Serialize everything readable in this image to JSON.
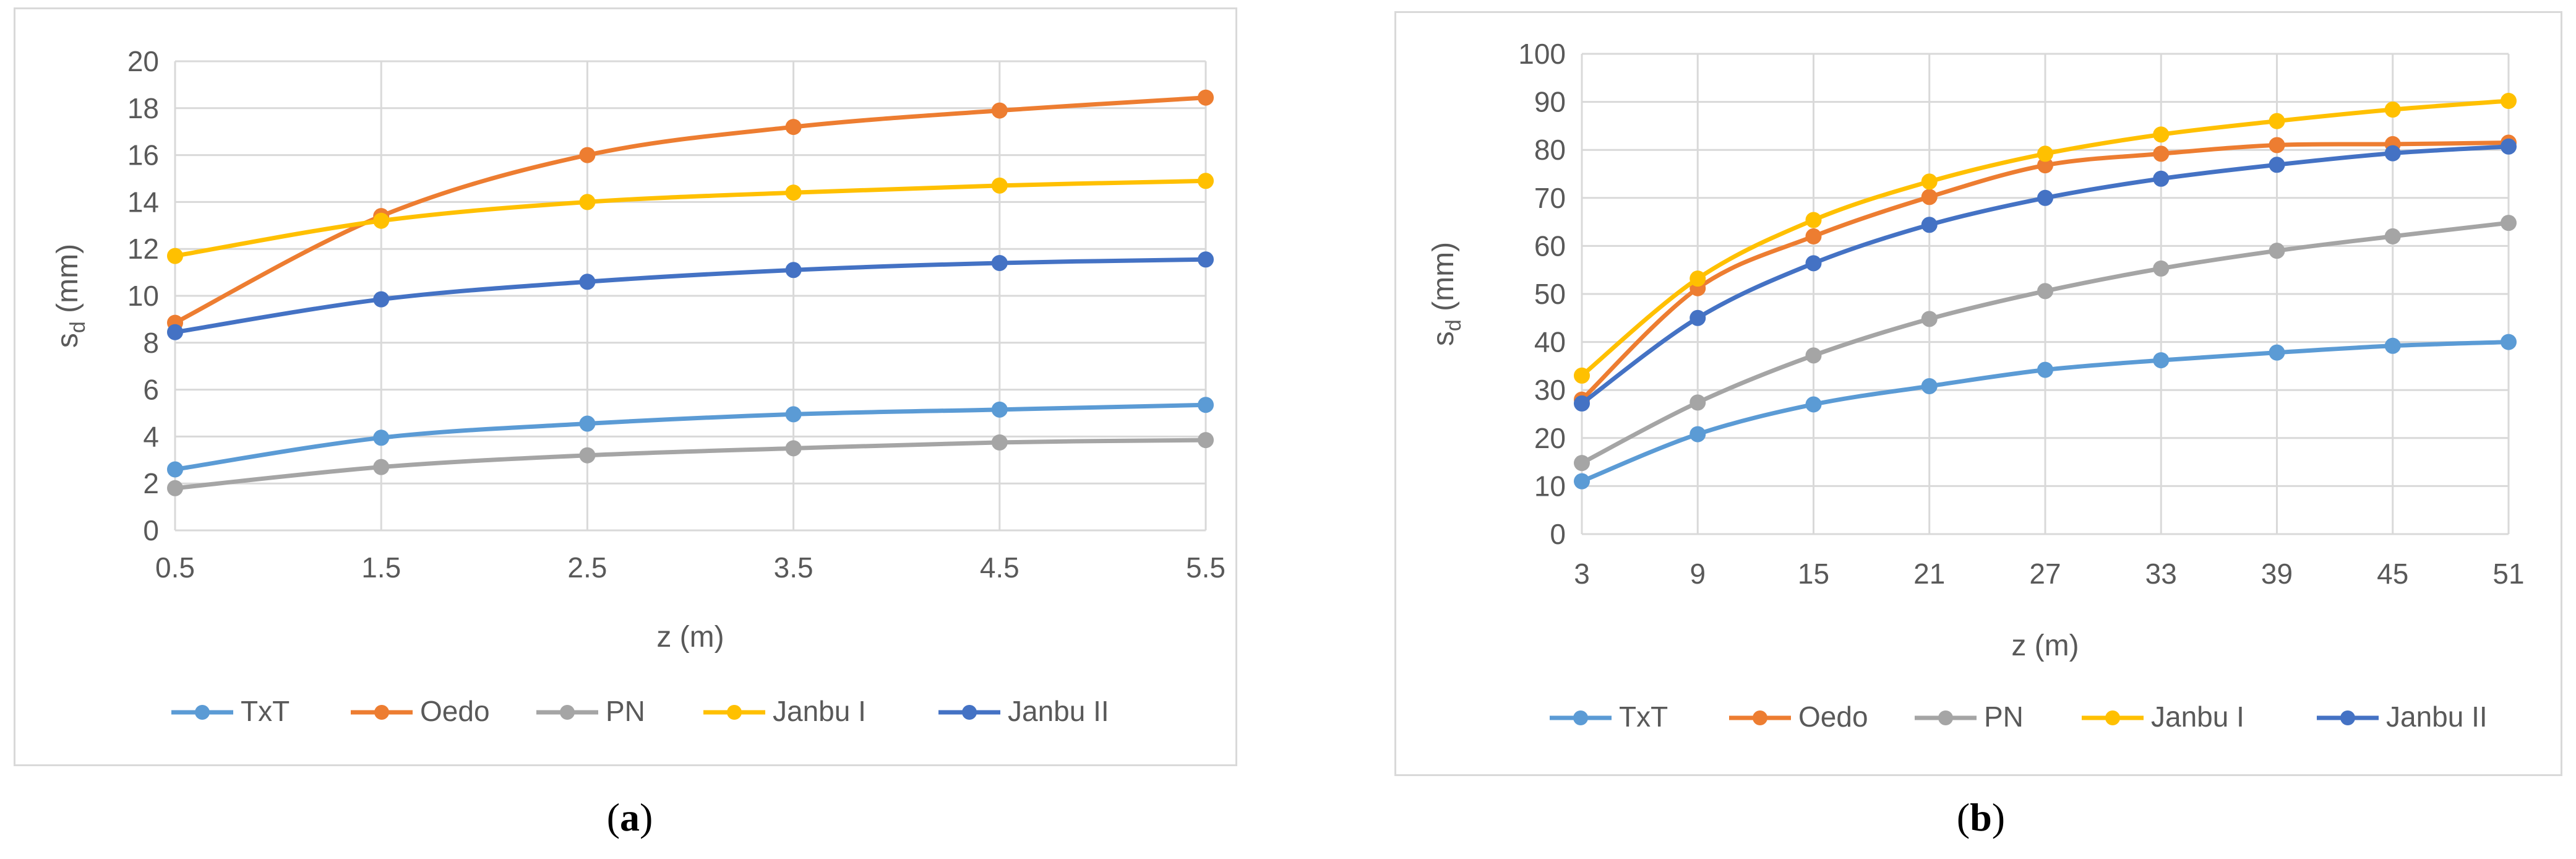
{
  "captions": {
    "a": "a",
    "b": "b"
  },
  "chart_data": [
    {
      "type": "line",
      "panel": "a",
      "title": "",
      "xlabel": "z (m)",
      "ylabel": "s_d (mm)",
      "ylabel_main": "s",
      "ylabel_sub": "d",
      "ylabel_rest": " (mm)",
      "x": [
        0.5,
        1.5,
        2.5,
        3.5,
        4.5,
        5.5
      ],
      "xticks": [
        "0.5",
        "1.5",
        "2.5",
        "3.5",
        "4.5",
        "5.5"
      ],
      "ylim": [
        0,
        20
      ],
      "yticks": [
        0,
        2,
        4,
        6,
        8,
        10,
        12,
        14,
        16,
        18,
        20
      ],
      "grid": true,
      "legend_position": "bottom",
      "series": [
        {
          "name": "TxT",
          "color": "#5b9bd5",
          "values": [
            2.6,
            3.95,
            4.55,
            4.95,
            5.15,
            5.35
          ]
        },
        {
          "name": "Oedo",
          "color": "#ed7d31",
          "values": [
            8.85,
            13.4,
            16.0,
            17.2,
            17.9,
            18.45
          ]
        },
        {
          "name": "PN",
          "color": "#a5a5a5",
          "values": [
            1.8,
            2.7,
            3.2,
            3.5,
            3.75,
            3.85
          ]
        },
        {
          "name": "Janbu I",
          "color": "#ffc000",
          "values": [
            11.7,
            13.2,
            14.0,
            14.4,
            14.7,
            14.9
          ]
        },
        {
          "name": "Janbu II",
          "color": "#4472c4",
          "values": [
            8.45,
            9.85,
            10.6,
            11.1,
            11.4,
            11.55
          ]
        }
      ]
    },
    {
      "type": "line",
      "panel": "b",
      "title": "",
      "xlabel": "z (m)",
      "ylabel": "s_d (mm)",
      "ylabel_main": "s",
      "ylabel_sub": "d",
      "ylabel_rest": " (mm)",
      "x": [
        3,
        9,
        15,
        21,
        27,
        33,
        39,
        45,
        51
      ],
      "xticks": [
        "3",
        "9",
        "15",
        "21",
        "27",
        "33",
        "39",
        "45",
        "51"
      ],
      "ylim": [
        0,
        100
      ],
      "yticks": [
        0,
        10,
        20,
        30,
        40,
        50,
        60,
        70,
        80,
        90,
        100
      ],
      "grid": true,
      "legend_position": "bottom",
      "series": [
        {
          "name": "TxT",
          "color": "#5b9bd5",
          "values": [
            11,
            20.8,
            27,
            30.8,
            34.2,
            36.2,
            37.8,
            39.2,
            40
          ]
        },
        {
          "name": "Oedo",
          "color": "#ed7d31",
          "values": [
            28,
            51.2,
            62,
            70.2,
            76.8,
            79.2,
            81,
            81.2,
            81.5
          ]
        },
        {
          "name": "PN",
          "color": "#a5a5a5",
          "values": [
            14.8,
            27.4,
            37.2,
            44.8,
            50.6,
            55.3,
            59,
            62,
            64.8
          ]
        },
        {
          "name": "Janbu I",
          "color": "#ffc000",
          "values": [
            33,
            53.2,
            65.4,
            73.4,
            79.2,
            83.2,
            86,
            88.4,
            90.2
          ]
        },
        {
          "name": "Janbu II",
          "color": "#4472c4",
          "values": [
            27.2,
            45,
            56.4,
            64.4,
            70,
            74,
            76.9,
            79.3,
            80.7
          ]
        }
      ]
    }
  ]
}
